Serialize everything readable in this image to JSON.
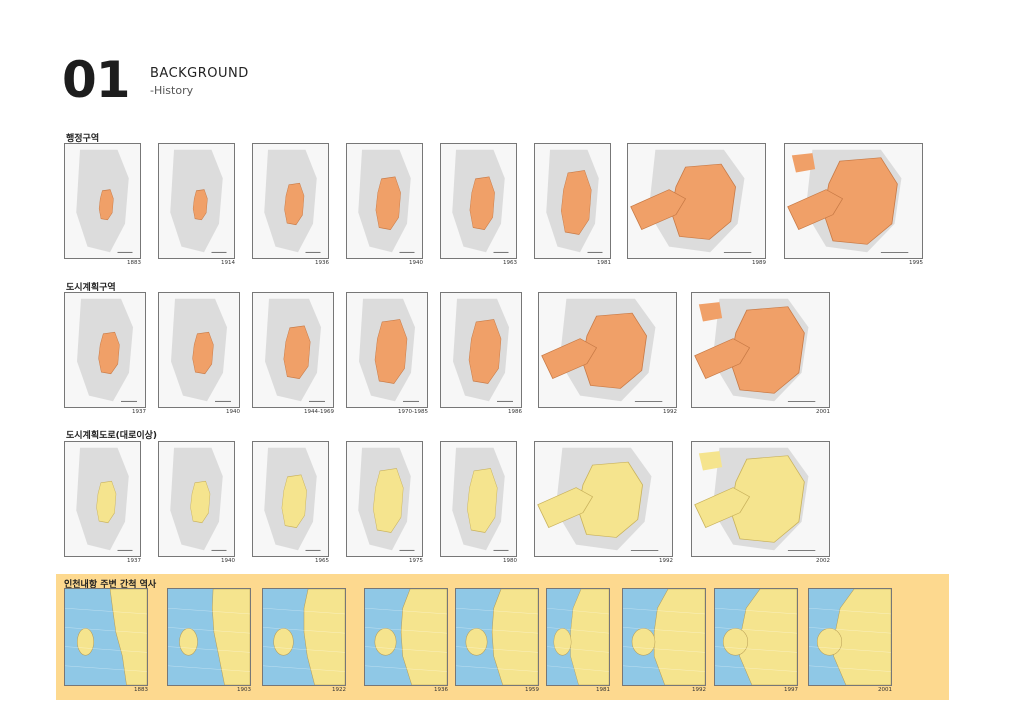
{
  "header": {
    "number": "01",
    "title": "BACKGROUND",
    "subtitle": "-History"
  },
  "colors": {
    "orange": "#f0a068",
    "yellow": "#f5e48e",
    "gray": "#c6c6c6",
    "sea": "#8fc8e6",
    "band": "#fdd98f"
  },
  "sections": [
    {
      "label": "행정구역",
      "style": "orange",
      "maps": [
        {
          "year": "1883",
          "stage": 0
        },
        {
          "year": "1914",
          "stage": 0
        },
        {
          "year": "1936",
          "stage": 1
        },
        {
          "year": "1940",
          "stage": 2
        },
        {
          "year": "1963",
          "stage": 2
        },
        {
          "year": "1981",
          "stage": 3
        },
        {
          "year": "1989",
          "stage": 4
        },
        {
          "year": "1995",
          "stage": 5
        }
      ]
    },
    {
      "label": "도시계획구역",
      "style": "orange",
      "maps": [
        {
          "year": "1937",
          "stage": 1
        },
        {
          "year": "1940",
          "stage": 1
        },
        {
          "year": "1944-1969",
          "stage": 2
        },
        {
          "year": "1970-1985",
          "stage": 3
        },
        {
          "year": "1986",
          "stage": 3
        },
        {
          "year": "1992",
          "stage": 4
        },
        {
          "year": "2001",
          "stage": 5
        }
      ]
    },
    {
      "label": "도시계획도로(대로이상)",
      "style": "yellow",
      "maps": [
        {
          "year": "1937",
          "stage": 1
        },
        {
          "year": "1940",
          "stage": 1
        },
        {
          "year": "1965",
          "stage": 2
        },
        {
          "year": "1975",
          "stage": 3
        },
        {
          "year": "1980",
          "stage": 3
        },
        {
          "year": "1992",
          "stage": 4
        },
        {
          "year": "2002",
          "stage": 5
        }
      ]
    },
    {
      "label": "인천내항 주변 간척 역사",
      "style": "sea",
      "maps": [
        {
          "year": "1883",
          "stage": 0
        },
        {
          "year": "1903",
          "stage": 1
        },
        {
          "year": "1922",
          "stage": 2
        },
        {
          "year": "1936",
          "stage": 3
        },
        {
          "year": "1959",
          "stage": 3
        },
        {
          "year": "1981",
          "stage": 4
        },
        {
          "year": "1992",
          "stage": 4
        },
        {
          "year": "1997",
          "stage": 5
        },
        {
          "year": "2001",
          "stage": 5
        }
      ]
    }
  ]
}
